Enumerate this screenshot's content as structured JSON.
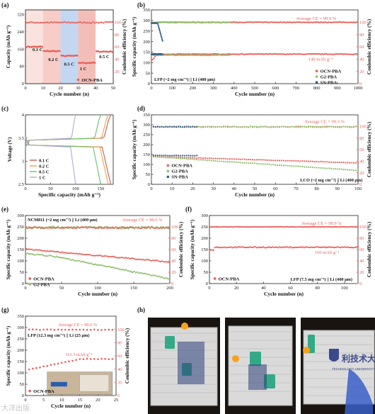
{
  "figure": {
    "panel_letters": [
      "(a)",
      "(b)",
      "(c)",
      "(d)",
      "(e)",
      "(f)",
      "(g)",
      "(h)"
    ],
    "watermark": "大洋出版",
    "colors": {
      "ocn": "#e8605a",
      "g2": "#8fbf6e",
      "sn": "#2f5e86",
      "gray": "#7f7f7f",
      "axis": "#222222"
    }
  },
  "panel_h": {
    "photo_text": [
      "利技术大学",
      "TECHNOLOGY UNIVERSITY"
    ],
    "description": "photographs of flexible pouch cells lighting LEDs"
  },
  "chart_data": [
    {
      "id": "a",
      "type": "scatter",
      "xlabel": "Cycle number (n)",
      "ylabel": "Capacity (mAh g⁻¹)",
      "y2label": "Coulombic efficiency (%)",
      "xlim": [
        0,
        50
      ],
      "ylim": [
        0,
        340
      ],
      "y2lim": [
        0,
        120
      ],
      "xticks": [
        0,
        10,
        20,
        30,
        40,
        50
      ],
      "yticks": [
        0,
        80,
        160,
        240,
        320
      ],
      "y2ticks": [
        20,
        40,
        60,
        80,
        100
      ],
      "shaded_regions": [
        {
          "x": [
            0,
            10
          ],
          "label": "0.1 C"
        },
        {
          "x": [
            10,
            20
          ],
          "label": "0.2 C"
        },
        {
          "x": [
            20,
            30
          ],
          "label": "0.5 C"
        },
        {
          "x": [
            30,
            40
          ],
          "label": "1 C"
        },
        {
          "x": [
            40,
            50
          ],
          "label": "0.5 C"
        }
      ],
      "series": [
        {
          "name": "OCN-PBA",
          "type": "capacity",
          "segments": [
            [
              0,
              10,
              170
            ],
            [
              10,
              20,
              150
            ],
            [
              20,
              30,
              128
            ],
            [
              30,
              40,
              96
            ],
            [
              40,
              50,
              148
            ]
          ]
        },
        {
          "name": "CE",
          "type": "ce",
          "value": 99.5
        }
      ]
    },
    {
      "id": "b",
      "type": "line",
      "xlabel": "Specific capacity (mAh g⁻¹)",
      "ylabel": "Voltage (V)",
      "xlim": [
        0,
        175
      ],
      "ylim": [
        2.5,
        4.0
      ],
      "xticks": [
        0,
        50,
        100,
        150
      ],
      "yticks": [
        2.5,
        3.0,
        3.5,
        4.0
      ],
      "series": [
        {
          "name": "0.1 C",
          "color": "#c45a4a",
          "cap": 170
        },
        {
          "name": "0.2 C",
          "color": "#e4a64a",
          "cap": 165
        },
        {
          "name": "0.5 C",
          "color": "#6cbe6c",
          "cap": 150
        },
        {
          "name": "1 C",
          "color": "#b6a8d6",
          "cap": 100
        }
      ]
    },
    {
      "id": "c",
      "type": "scatter",
      "xlabel": "Cycle number (n)",
      "ylabel": "Specific capacity (mAh g⁻¹)",
      "y2label": "Coulombic efficiency (%)",
      "xlim": [
        0,
        1000
      ],
      "ylim": [
        0,
        350
      ],
      "y2lim": [
        0,
        120
      ],
      "xticks": [
        0,
        100,
        200,
        300,
        400,
        500,
        600,
        700,
        800,
        900,
        1000
      ],
      "yticks": [
        0,
        50,
        100,
        150,
        200,
        250,
        300,
        350
      ],
      "y2ticks": [
        0,
        20,
        40,
        60,
        80,
        100
      ],
      "annotations": [
        "Average CE = 99.9 %",
        "140 mAh g⁻¹",
        "LFP (~2 mg cm⁻²) || Li (400 μm)"
      ],
      "series": [
        {
          "name": "OCN-PBA",
          "color": "#e8605a",
          "capacity": 140,
          "cycles": 1000,
          "ce": 99.9
        },
        {
          "name": "G2-PBA",
          "color": "#8fbf6e",
          "capacity": 135,
          "cycles": 380,
          "ce": 99.5
        },
        {
          "name": "SN-PBA",
          "color": "#2f5e86",
          "capacity": 140,
          "cycles": 55,
          "ce": 98
        }
      ]
    },
    {
      "id": "d",
      "type": "scatter",
      "xlabel": "Cycle number (n)",
      "ylabel": "Specific capacity (mAh g⁻¹)",
      "y2label": "Coulombic efficiency (%)",
      "xlim": [
        0,
        100
      ],
      "ylim": [
        0,
        350
      ],
      "y2lim": [
        0,
        120
      ],
      "xticks": [
        0,
        10,
        20,
        30,
        40,
        50,
        60,
        70,
        80,
        90,
        100
      ],
      "yticks": [
        0,
        50,
        100,
        150,
        200,
        250,
        300,
        350
      ],
      "y2ticks": [
        0,
        20,
        40,
        60,
        80,
        100
      ],
      "annotations": [
        "Average CE = 99.3 %",
        "LCO (~2 mg cm⁻²) || Li (400 μm)"
      ],
      "series": [
        {
          "name": "OCN-PBA",
          "color": "#e8605a",
          "capacity_start": 140,
          "capacity_end": 108,
          "cycles": 100
        },
        {
          "name": "G2-PBA",
          "color": "#8fbf6e",
          "capacity_start": 140,
          "capacity_end": 70,
          "cycles": 100
        },
        {
          "name": "SN-PBA",
          "color": "#2f5e86",
          "capacity_start": 145,
          "capacity_end": 145,
          "cycles": 22
        }
      ]
    },
    {
      "id": "e",
      "type": "scatter",
      "xlabel": "Cycle number (n)",
      "ylabel": "Specific capacity (mAh g⁻¹)",
      "y2label": "Coulombic efficiency (%)",
      "xlim": [
        0,
        200
      ],
      "ylim": [
        0,
        300
      ],
      "y2lim": [
        0,
        120
      ],
      "xticks": [
        0,
        50,
        100,
        150,
        200
      ],
      "yticks": [
        0,
        50,
        100,
        150,
        200,
        250,
        300
      ],
      "y2ticks": [
        0,
        20,
        40,
        60,
        80,
        100
      ],
      "annotations": [
        "NCM811 (~2 mg cm⁻²) || Li (400 μm)",
        "Average CE = 98.6 %"
      ],
      "series": [
        {
          "name": "OCN-PBA",
          "color": "#e8605a",
          "capacity_start": 152,
          "capacity_end": 95
        },
        {
          "name": "G2-PBA",
          "color": "#8fbf6e",
          "capacity_start": 132,
          "capacity_end": 22
        }
      ]
    },
    {
      "id": "f",
      "type": "scatter",
      "xlabel": "Cycle number (n)",
      "ylabel": "Specific capacity (mAh g⁻¹)",
      "y2label": "Coulombic efficiency (%)",
      "xlim": [
        0,
        110
      ],
      "ylim": [
        0,
        300
      ],
      "y2lim": [
        0,
        120
      ],
      "xticks": [
        0,
        20,
        40,
        60,
        80,
        100
      ],
      "yticks": [
        0,
        50,
        100,
        150,
        200,
        250,
        300
      ],
      "y2ticks": [
        0,
        20,
        40,
        60,
        80,
        100
      ],
      "annotations": [
        "Average CE = 99.9 %",
        "160 mAh g⁻¹",
        "LFP (7.5 mg cm⁻²) || Li (400 μm)"
      ],
      "series": [
        {
          "name": "OCN-PBA",
          "color": "#e8605a",
          "capacity": 160
        }
      ]
    },
    {
      "id": "g",
      "type": "scatter",
      "xlabel": "Cycle number (n)",
      "ylabel": "Specific capacity (mAh g⁻¹)",
      "y2label": "Coulombic efficiency (%)",
      "xlim": [
        0,
        25
      ],
      "ylim": [
        0,
        350
      ],
      "y2lim": [
        0,
        120
      ],
      "xticks": [
        0,
        5,
        10,
        15,
        20,
        25
      ],
      "yticks": [
        0,
        50,
        100,
        150,
        200,
        250,
        300,
        350
      ],
      "y2ticks": [
        0,
        20,
        40,
        60,
        80,
        100
      ],
      "annotations": [
        "Average CE = 99.6 %",
        "LFP (12.3 mg cm⁻²) || Li (25 μm)",
        "161.3 mAh g⁻¹"
      ],
      "series": [
        {
          "name": "OCN-PBA",
          "color": "#e8605a",
          "capacity_start": 115,
          "capacity_end": 161.3,
          "cycles": 24
        }
      ]
    }
  ]
}
